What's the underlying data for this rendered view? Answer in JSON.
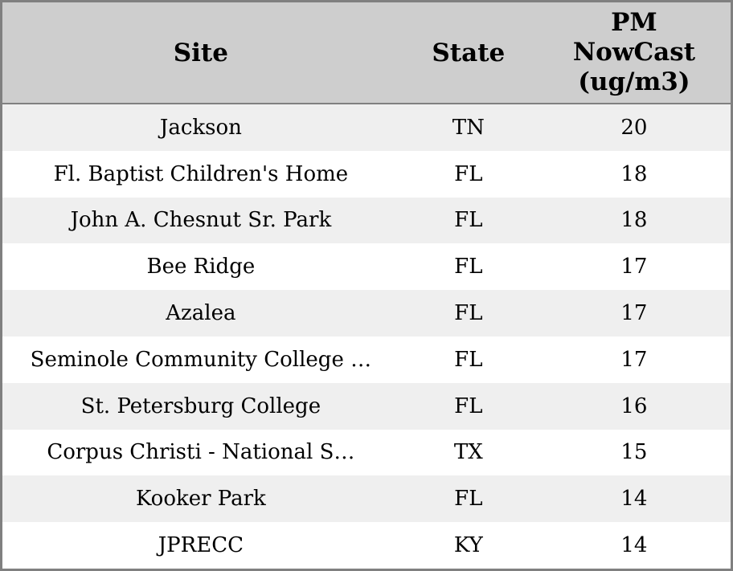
{
  "chart_data": {
    "type": "table",
    "title": "",
    "columns": [
      "Site",
      "State",
      "PM NowCast (ug/m3)"
    ],
    "header_display": {
      "site": "Site",
      "state": "State",
      "pm_nowcast": "PM\nNowCast\n(ug/m3)"
    },
    "rows": [
      {
        "site": "Jackson",
        "state": "TN",
        "pm_nowcast": 20
      },
      {
        "site": "Fl. Baptist Children's Home",
        "state": "FL",
        "pm_nowcast": 18
      },
      {
        "site": "John A. Chesnut Sr. Park",
        "state": "FL",
        "pm_nowcast": 18
      },
      {
        "site": "Bee Ridge",
        "state": "FL",
        "pm_nowcast": 17
      },
      {
        "site": "Azalea",
        "state": "FL",
        "pm_nowcast": 17
      },
      {
        "site": "Seminole Community College …",
        "state": "FL",
        "pm_nowcast": 17
      },
      {
        "site": "St. Petersburg College",
        "state": "FL",
        "pm_nowcast": 16
      },
      {
        "site": "Corpus Christi - National S…",
        "state": "TX",
        "pm_nowcast": 15
      },
      {
        "site": "Kooker Park",
        "state": "FL",
        "pm_nowcast": 14
      },
      {
        "site": "JPRECC",
        "state": "KY",
        "pm_nowcast": 14
      }
    ],
    "layout": {
      "header_bg": "#cecece",
      "row_odd_bg": "#efefef",
      "row_even_bg": "#ffffff",
      "border_color": "#808080",
      "text_color": "#000000",
      "grid": "horizontal-stripes-only",
      "alignment": "center"
    }
  }
}
